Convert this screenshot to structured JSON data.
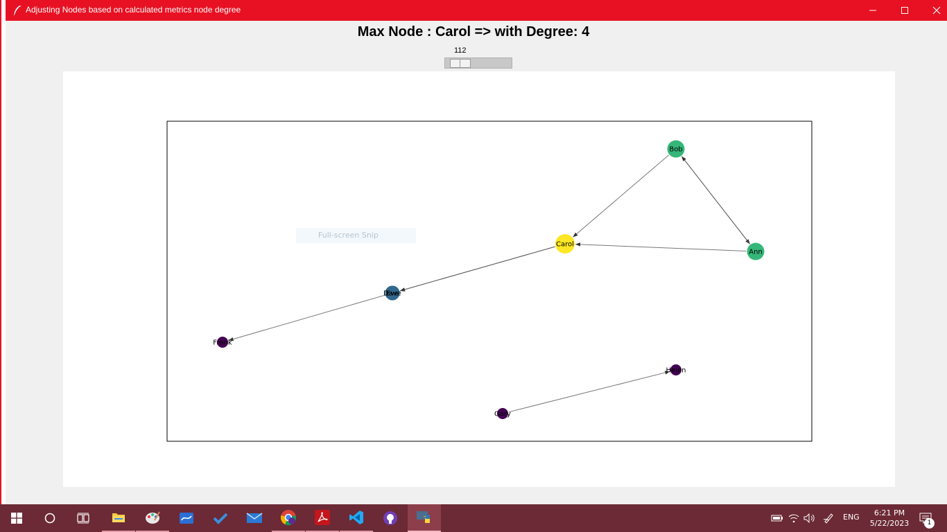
{
  "window": {
    "title": "Adjusting Nodes based on calculated metrics node degree",
    "titlebar_color": "#e81123"
  },
  "header": {
    "max_node_text": "Max Node : Carol => with Degree: 4"
  },
  "slider": {
    "value": "112"
  },
  "overlay": {
    "snip_text": "Full-screen Snip"
  },
  "graph": {
    "nodes": [
      {
        "id": "Bob",
        "label": "Bob",
        "color": "#35b779"
      },
      {
        "id": "Ann",
        "label": "Ann",
        "color": "#35b779"
      },
      {
        "id": "Carol",
        "label": "Carol",
        "color": "#fde725"
      },
      {
        "id": "Dave",
        "label": "Dave",
        "color": "#31688e"
      },
      {
        "id": "Eve",
        "label": "Eve",
        "color": "#31688e"
      },
      {
        "id": "Frank",
        "label": "Frank",
        "color": "#440154"
      },
      {
        "id": "Helen",
        "label": "Helen",
        "color": "#440154"
      },
      {
        "id": "Gary",
        "label": "Gary",
        "color": "#440154"
      }
    ],
    "edges": [
      {
        "from": "Bob",
        "to": "Carol"
      },
      {
        "from": "Bob",
        "to": "Ann"
      },
      {
        "from": "Ann",
        "to": "Bob"
      },
      {
        "from": "Ann",
        "to": "Carol"
      },
      {
        "from": "Carol",
        "to": "Dave"
      },
      {
        "from": "Carol",
        "to": "Eve"
      },
      {
        "from": "Dave",
        "to": "Frank"
      },
      {
        "from": "Gary",
        "to": "Helen"
      }
    ]
  },
  "taskbar": {
    "apps": [
      "start-button",
      "cortana",
      "task-view",
      "file-explorer",
      "paint",
      "whiteboard",
      "todo",
      "mail",
      "chrome",
      "acrobat",
      "vscode",
      "github-desktop",
      "python"
    ]
  },
  "tray": {
    "language": "ENG",
    "time": "6:21 PM",
    "date": "5/22/2023",
    "notification_count": "1"
  }
}
